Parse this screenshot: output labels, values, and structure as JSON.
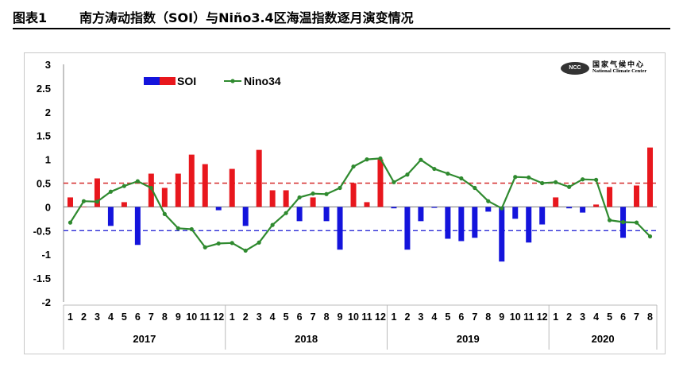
{
  "figure": {
    "number": "图表1",
    "title": "南方涛动指数（SOI）与Niño3.4区海温指数逐月演变情况"
  },
  "logo": {
    "icon": "ncc-globe-icon",
    "badge_text": "NCC",
    "name_cn": "国家气候中心",
    "name_en": "National Climate Center"
  },
  "colors": {
    "soi_positive": "#e8171d",
    "soi_negative": "#1414dc",
    "nino_line": "#2f8a2f",
    "upper_threshold": "#d62a2a",
    "lower_threshold": "#2a2ad6"
  },
  "chart_data": {
    "type": "bar",
    "ylim": [
      -2,
      3
    ],
    "yticks": [
      "3",
      "2.5",
      "2",
      "1.5",
      "1",
      "0.5",
      "0",
      "-0.5",
      "-1",
      "-1.5",
      "-2"
    ],
    "month_labels": [
      "1",
      "2",
      "3",
      "4",
      "5",
      "6",
      "7",
      "8",
      "9",
      "10",
      "11",
      "12",
      "1",
      "2",
      "3",
      "4",
      "5",
      "6",
      "7",
      "8",
      "9",
      "10",
      "11",
      "12",
      "1",
      "2",
      "3",
      "4",
      "5",
      "6",
      "7",
      "8",
      "9",
      "10",
      "11",
      "12",
      "1",
      "2",
      "3",
      "4",
      "5",
      "6",
      "7",
      "8"
    ],
    "year_groups": [
      {
        "label": "2017",
        "months": 12
      },
      {
        "label": "2018",
        "months": 12
      },
      {
        "label": "2019",
        "months": 12
      },
      {
        "label": "2020",
        "months": 8
      }
    ],
    "thresholds": [
      0.5,
      -0.5
    ],
    "series": [
      {
        "name": "SOI",
        "type": "bar",
        "values": [
          0.2,
          0.0,
          0.6,
          -0.4,
          0.1,
          -0.8,
          0.7,
          0.4,
          0.7,
          1.1,
          0.9,
          -0.07,
          0.8,
          -0.4,
          1.2,
          0.35,
          0.35,
          -0.3,
          0.2,
          -0.3,
          -0.9,
          0.5,
          0.1,
          1.0,
          -0.03,
          -0.9,
          -0.3,
          -0.02,
          -0.67,
          -0.72,
          -0.65,
          -0.1,
          -1.15,
          -0.25,
          -0.75,
          -0.37,
          0.2,
          -0.03,
          -0.12,
          0.05,
          0.42,
          -0.65,
          0.45,
          1.25
        ]
      },
      {
        "name": "Nino34",
        "type": "line",
        "values": [
          -0.33,
          0.12,
          0.11,
          0.32,
          0.44,
          0.54,
          0.4,
          -0.15,
          -0.45,
          -0.47,
          -0.85,
          -0.77,
          -0.76,
          -0.92,
          -0.75,
          -0.38,
          -0.13,
          0.2,
          0.28,
          0.27,
          0.4,
          0.85,
          1.0,
          1.02,
          0.52,
          0.68,
          0.99,
          0.8,
          0.7,
          0.6,
          0.4,
          0.12,
          -0.03,
          0.63,
          0.62,
          0.5,
          0.52,
          0.42,
          0.58,
          0.57,
          -0.28,
          -0.32,
          -0.33,
          -0.62
        ]
      }
    ]
  }
}
